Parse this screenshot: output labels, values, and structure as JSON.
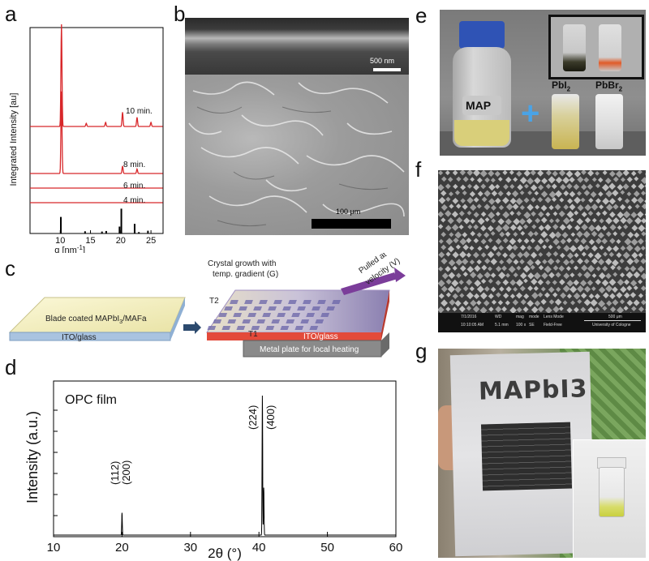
{
  "panel_labels": {
    "a": "a",
    "b": "b",
    "c": "c",
    "d": "d",
    "e": "e",
    "f": "f",
    "g": "g"
  },
  "panel_a": {
    "ylabel": "Integrated Intensity [au]",
    "xlabel": "q [nm",
    "xlabel_sup": "-1",
    "xlabel_end": "]",
    "xticks": [
      "10",
      "15",
      "20",
      "25"
    ],
    "trace_labels": [
      "10 min.",
      "8 min.",
      "6 min.",
      "4 min."
    ]
  },
  "panel_b": {
    "scale_top": "500 nm",
    "scale_bottom": "100 μm"
  },
  "panel_c": {
    "film_label": "Blade coated MAPbI",
    "film_label_sub": "3",
    "film_label_end": "/MAFa",
    "ito_left": "ITO/glass",
    "growth_title_1": "Crystal growth with",
    "growth_title_2": "temp. gradient (G)",
    "pulled_1": "Pulled at",
    "pulled_2": "velocity (V)",
    "t1": "T1",
    "t2": "T2",
    "ito_right": "ITO/glass",
    "metal": "Metal plate for local heating"
  },
  "panel_e": {
    "map": "MAP",
    "pbi": "PbI",
    "pbi_sub": "2",
    "pbbr": "PbBr",
    "pbbr_sub": "2",
    "plus": "+"
  },
  "panel_f": {
    "sem_bar": [
      "7/1/2016",
      "WD",
      "mag",
      "mode",
      "Lens Mode",
      "500 μm",
      "10:10:05 AM",
      "5.1 mm",
      "100 x",
      "SE",
      "Field-Free",
      "University of Cologne"
    ]
  },
  "panel_g": {
    "paper_text": "MAPbI3"
  },
  "chart_data": [
    {
      "type": "line",
      "panel": "a",
      "xlabel": "q [nm-1]",
      "ylabel": "Integrated Intensity [au]",
      "xlim": [
        5,
        27
      ],
      "x_ticks": [
        10,
        15,
        20,
        25
      ],
      "series": [
        {
          "name": "10 min.",
          "peaks": [
            {
              "x": 10.2,
              "y": 1.0
            },
            {
              "x": 14.3,
              "y": 0.03
            },
            {
              "x": 17.5,
              "y": 0.04
            },
            {
              "x": 20.3,
              "y": 0.14
            },
            {
              "x": 22.7,
              "y": 0.09
            },
            {
              "x": 25.0,
              "y": 0.04
            }
          ]
        },
        {
          "name": "8 min.",
          "peaks": [
            {
              "x": 10.2,
              "y": 0.55
            },
            {
              "x": 20.3,
              "y": 0.05
            },
            {
              "x": 22.7,
              "y": 0.03
            }
          ]
        },
        {
          "name": "6 min.",
          "peaks": [
            {
              "x": 10.2,
              "y": 0.01
            }
          ]
        },
        {
          "name": "4 min.",
          "peaks": []
        }
      ],
      "reference_sticks": [
        {
          "x": 10.1,
          "h": 0.6
        },
        {
          "x": 14.1,
          "h": 0.08
        },
        {
          "x": 16.9,
          "h": 0.07
        },
        {
          "x": 17.6,
          "h": 0.09
        },
        {
          "x": 19.8,
          "h": 0.25
        },
        {
          "x": 20.1,
          "h": 0.9
        },
        {
          "x": 22.3,
          "h": 0.35
        },
        {
          "x": 23.0,
          "h": 0.05
        },
        {
          "x": 24.5,
          "h": 0.1
        }
      ]
    },
    {
      "type": "line",
      "panel": "d",
      "title": "OPC film",
      "xlabel": "2θ (°)",
      "ylabel": "Intensity (a.u.)",
      "xlim": [
        10,
        60
      ],
      "x_ticks": [
        10,
        20,
        30,
        40,
        50,
        60
      ],
      "peaks": [
        {
          "x": 20.0,
          "y": 0.16,
          "label": "(112)\n(200)"
        },
        {
          "x": 40.5,
          "y": 1.0,
          "label": "(224)\n(400)"
        },
        {
          "x": 40.7,
          "y": 0.34
        }
      ]
    }
  ]
}
